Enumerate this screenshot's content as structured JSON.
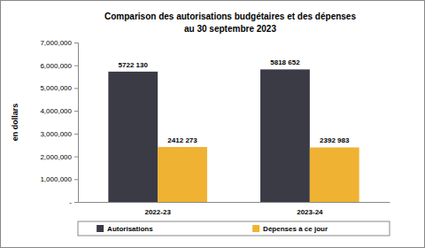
{
  "chart_data": {
    "type": "bar",
    "title": "Comparison des autorisations budgétaires et des dépenses",
    "subtitle": "au 30 septembre 2023",
    "y_label": "en dollars",
    "categories": [
      "2022-23",
      "2023-24"
    ],
    "series": [
      {
        "name": "Autorisations",
        "color": "#3b3b45",
        "values": [
          5722130,
          5818652
        ],
        "value_labels": [
          "5722 130",
          "5818 652"
        ]
      },
      {
        "name": "Dépenses à ce jour",
        "color": "#f0b232",
        "values": [
          2412273,
          2392983
        ],
        "value_labels": [
          "2412 273",
          "2392 983"
        ]
      }
    ],
    "ylim": [
      0,
      7000000
    ],
    "yticks": [
      {
        "value": 0,
        "label": "-"
      },
      {
        "value": 1000000,
        "label": "1,000,000"
      },
      {
        "value": 2000000,
        "label": "2,000,000"
      },
      {
        "value": 3000000,
        "label": "3,000,000"
      },
      {
        "value": 4000000,
        "label": "4,000,000"
      },
      {
        "value": 5000000,
        "label": "5,000,000"
      },
      {
        "value": 6000000,
        "label": "6,000,000"
      },
      {
        "value": 7000000,
        "label": "7,000,000"
      }
    ],
    "grid": false,
    "legend": "bottom",
    "data_labels": true
  }
}
